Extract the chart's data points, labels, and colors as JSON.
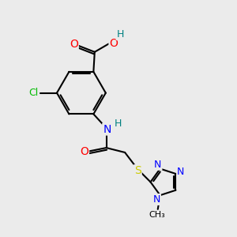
{
  "bg_color": "#ebebeb",
  "bond_color": "#000000",
  "bond_width": 1.5,
  "atom_colors": {
    "O": "#ff0000",
    "N": "#0000ff",
    "S": "#cccc00",
    "Cl": "#00bb00",
    "C": "#000000",
    "H": "#008080"
  },
  "font_size": 9,
  "font_size_sub": 7
}
